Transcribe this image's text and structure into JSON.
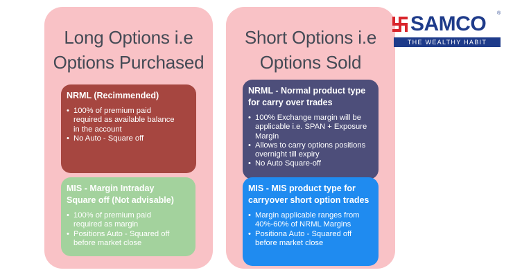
{
  "left_panel": {
    "title_line1": "Long Options i.e",
    "title_line2": "Options Purchased",
    "nrml_card": {
      "title": "NRML (Recimmended)",
      "bullets": [
        "100% of premium paid required as available balance in the account",
        "No Auto - Square off"
      ]
    },
    "mis_card": {
      "title": "MIS - Margin Intraday Square off (Not advisable)",
      "bullets": [
        "100% of premium paid required as margin",
        "Positions Auto - Squared off before market close"
      ]
    }
  },
  "right_panel": {
    "title_line1": "Short Options i.e",
    "title_line2": "Options Sold",
    "nrml_card": {
      "title": "NRML - Normal product type for carry over trades",
      "bullets": [
        "100% Exchange margin will be applicable i.e. SPAN + Exposure Margin",
        "Allows to carry options positions overnight till expiry",
        "No Auto Square-off"
      ]
    },
    "mis_card": {
      "title": "MIS - MIS product type for carryover short option trades",
      "bullets": [
        "Margin applicable ranges from 40%-60% of NRML Margins",
        "Positiona Auto - Squared off before market close"
      ]
    }
  },
  "logo": {
    "word": "SAMCO",
    "registered": "®",
    "tagline": "THE WEALTHY HABIT"
  },
  "colors": {
    "panel_bg": "#f9c2c6",
    "title_text": "#444a55",
    "nrml_long": "#a64640",
    "mis_long": "#a3d29d",
    "nrml_short": "#4d4e7a",
    "mis_short": "#1f8bf0",
    "logo_red": "#d9242b",
    "logo_blue": "#1e3b8a"
  }
}
